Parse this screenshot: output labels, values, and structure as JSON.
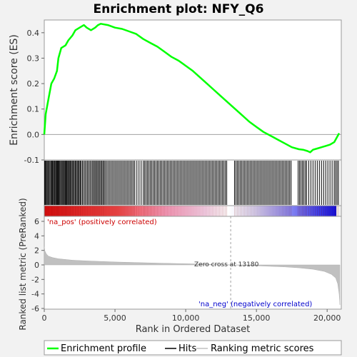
{
  "chart_data": [
    {
      "type": "line",
      "title": "Enrichment plot: NFY_Q6",
      "ylabel": "Enrichment score (ES)",
      "xlabel": "",
      "xlim": [
        0,
        21000
      ],
      "ylim": [
        -0.1,
        0.45
      ],
      "yticks": [
        -0.1,
        0.0,
        0.1,
        0.2,
        0.3,
        0.4
      ],
      "ytick_labels": [
        "-0.1",
        "0.0",
        "0.1",
        "0.2",
        "0.3",
        "0.4"
      ],
      "series": [
        {
          "name": "Enrichment profile",
          "color": "#00ff00",
          "x": [
            0,
            100,
            300,
            500,
            700,
            900,
            1000,
            1200,
            1500,
            1700,
            2000,
            2200,
            2500,
            2800,
            3000,
            3300,
            3600,
            3800,
            4000,
            4500,
            5000,
            5500,
            6000,
            6500,
            7000,
            7500,
            8000,
            8500,
            9000,
            9500,
            10000,
            10500,
            11000,
            11500,
            12000,
            12500,
            13000,
            13500,
            14000,
            14500,
            15000,
            15500,
            16000,
            16500,
            17000,
            17500,
            18000,
            18300,
            18600,
            18800,
            19000,
            19300,
            19600,
            19900,
            20200,
            20500,
            20700,
            20850
          ],
          "values": [
            0.0,
            0.08,
            0.14,
            0.2,
            0.22,
            0.25,
            0.3,
            0.34,
            0.35,
            0.37,
            0.39,
            0.41,
            0.42,
            0.43,
            0.42,
            0.41,
            0.42,
            0.43,
            0.435,
            0.43,
            0.42,
            0.415,
            0.405,
            0.395,
            0.375,
            0.36,
            0.345,
            0.325,
            0.305,
            0.29,
            0.27,
            0.25,
            0.225,
            0.2,
            0.175,
            0.15,
            0.125,
            0.1,
            0.075,
            0.05,
            0.03,
            0.01,
            -0.005,
            -0.02,
            -0.035,
            -0.05,
            -0.058,
            -0.06,
            -0.065,
            -0.07,
            -0.06,
            -0.055,
            -0.05,
            -0.045,
            -0.04,
            -0.03,
            -0.01,
            0.005
          ]
        }
      ],
      "baseline": 0.0
    },
    {
      "type": "hits",
      "name": "Hits",
      "description_of_density": "dense gene hits spread across the ranked list, with gaps near 13000-13400 and 17500-18000",
      "hit_ranks": [
        30,
        80,
        140,
        200,
        260,
        330,
        400,
        470,
        520,
        580,
        650,
        700,
        760,
        820,
        880,
        930,
        990,
        1040,
        1100,
        1160,
        1230,
        1300,
        1360,
        1420,
        1480,
        1540,
        1600,
        1660,
        1720,
        1780,
        1850,
        1910,
        1980,
        2050,
        2120,
        2190,
        2260,
        2330,
        2400,
        2470,
        2540,
        2610,
        2700,
        2790,
        2880,
        2970,
        3060,
        3150,
        3240,
        3330,
        3420,
        3500,
        3580,
        3660,
        3740,
        3820,
        3900,
        3980,
        4060,
        4140,
        4220,
        4300,
        4400,
        4500,
        4600,
        4700,
        4800,
        4900,
        5000,
        5100,
        5200,
        5300,
        5400,
        5500,
        5600,
        5700,
        5800,
        5900,
        6000,
        6100,
        6200,
        6300,
        6400,
        6550,
        6700,
        6850,
        7000,
        7100,
        7200,
        7300,
        7400,
        7500,
        7600,
        7700,
        7800,
        7900,
        8000,
        8100,
        8200,
        8300,
        8400,
        8500,
        8600,
        8700,
        8800,
        8900,
        9000,
        9100,
        9200,
        9300,
        9400,
        9500,
        9600,
        9700,
        9800,
        9900,
        10000,
        10100,
        10200,
        10300,
        10400,
        10500,
        10600,
        10700,
        10800,
        10900,
        11000,
        11100,
        11200,
        11300,
        11400,
        11500,
        11600,
        11700,
        11800,
        11900,
        12000,
        12100,
        12200,
        12300,
        12400,
        12500,
        12600,
        12700,
        12800,
        12900,
        13450,
        13550,
        13650,
        13750,
        13850,
        13950,
        14050,
        14150,
        14250,
        14350,
        14450,
        14550,
        14650,
        14750,
        14850,
        14950,
        15050,
        15150,
        15250,
        15350,
        15450,
        15550,
        15650,
        15750,
        15850,
        15950,
        16050,
        16150,
        16250,
        16350,
        16450,
        16550,
        16650,
        16750,
        16850,
        16950,
        17050,
        17150,
        17250,
        17350,
        17450,
        17950,
        18050,
        18150,
        18250,
        18350,
        18450,
        18550,
        18700,
        18850,
        19000,
        19150,
        19300,
        19450,
        19600,
        19750,
        19900,
        20050,
        20200,
        20350,
        20500,
        20600,
        20700,
        20800
      ]
    },
    {
      "type": "area",
      "name": "Ranking metric scores",
      "ylabel": "Ranked list metric (PreRanked)",
      "xlabel": "Rank in Ordered Dataset",
      "xlim": [
        0,
        21000
      ],
      "ylim": [
        -6,
        6
      ],
      "xticks": [
        0,
        5000,
        10000,
        15000,
        20000
      ],
      "xtick_labels": [
        "0",
        "5,000",
        "10,000",
        "15,000",
        "20,000"
      ],
      "yticks": [
        -6,
        -4,
        -2,
        0,
        2,
        4,
        6
      ],
      "ytick_labels": [
        "-6",
        "-4",
        "-2",
        "0",
        "2",
        "4",
        "6"
      ],
      "x": [
        0,
        50,
        150,
        300,
        600,
        1000,
        2000,
        3000,
        5000,
        8000,
        11000,
        13180,
        15000,
        17000,
        18000,
        19000,
        19800,
        20300,
        20600,
        20750,
        20850,
        20900
      ],
      "values": [
        2.5,
        1.9,
        1.5,
        1.2,
        1.0,
        0.85,
        0.65,
        0.55,
        0.4,
        0.25,
        0.12,
        0.0,
        -0.12,
        -0.28,
        -0.4,
        -0.6,
        -0.9,
        -1.3,
        -1.8,
        -2.6,
        -4.0,
        -5.5
      ],
      "zero_cross_rank": 13180,
      "zero_cross_label": "Zero cross at 13180",
      "pos_label": "'na_pos' (positively correlated)",
      "neg_label": "'na_neg' (negatively correlated)"
    }
  ],
  "legend": {
    "items": [
      {
        "label": "Enrichment profile",
        "color": "#00ff00"
      },
      {
        "label": "Hits",
        "color": "#000000"
      },
      {
        "label": "Ranking metric scores",
        "color": "#c0c0c0"
      }
    ],
    "position": "bottom"
  },
  "colors": {
    "es_line": "#00ff00",
    "pos_label": "#cc0000",
    "neg_label": "#0000cc",
    "metric_fill": "#c0c0c0",
    "zero_line": "#808080"
  }
}
